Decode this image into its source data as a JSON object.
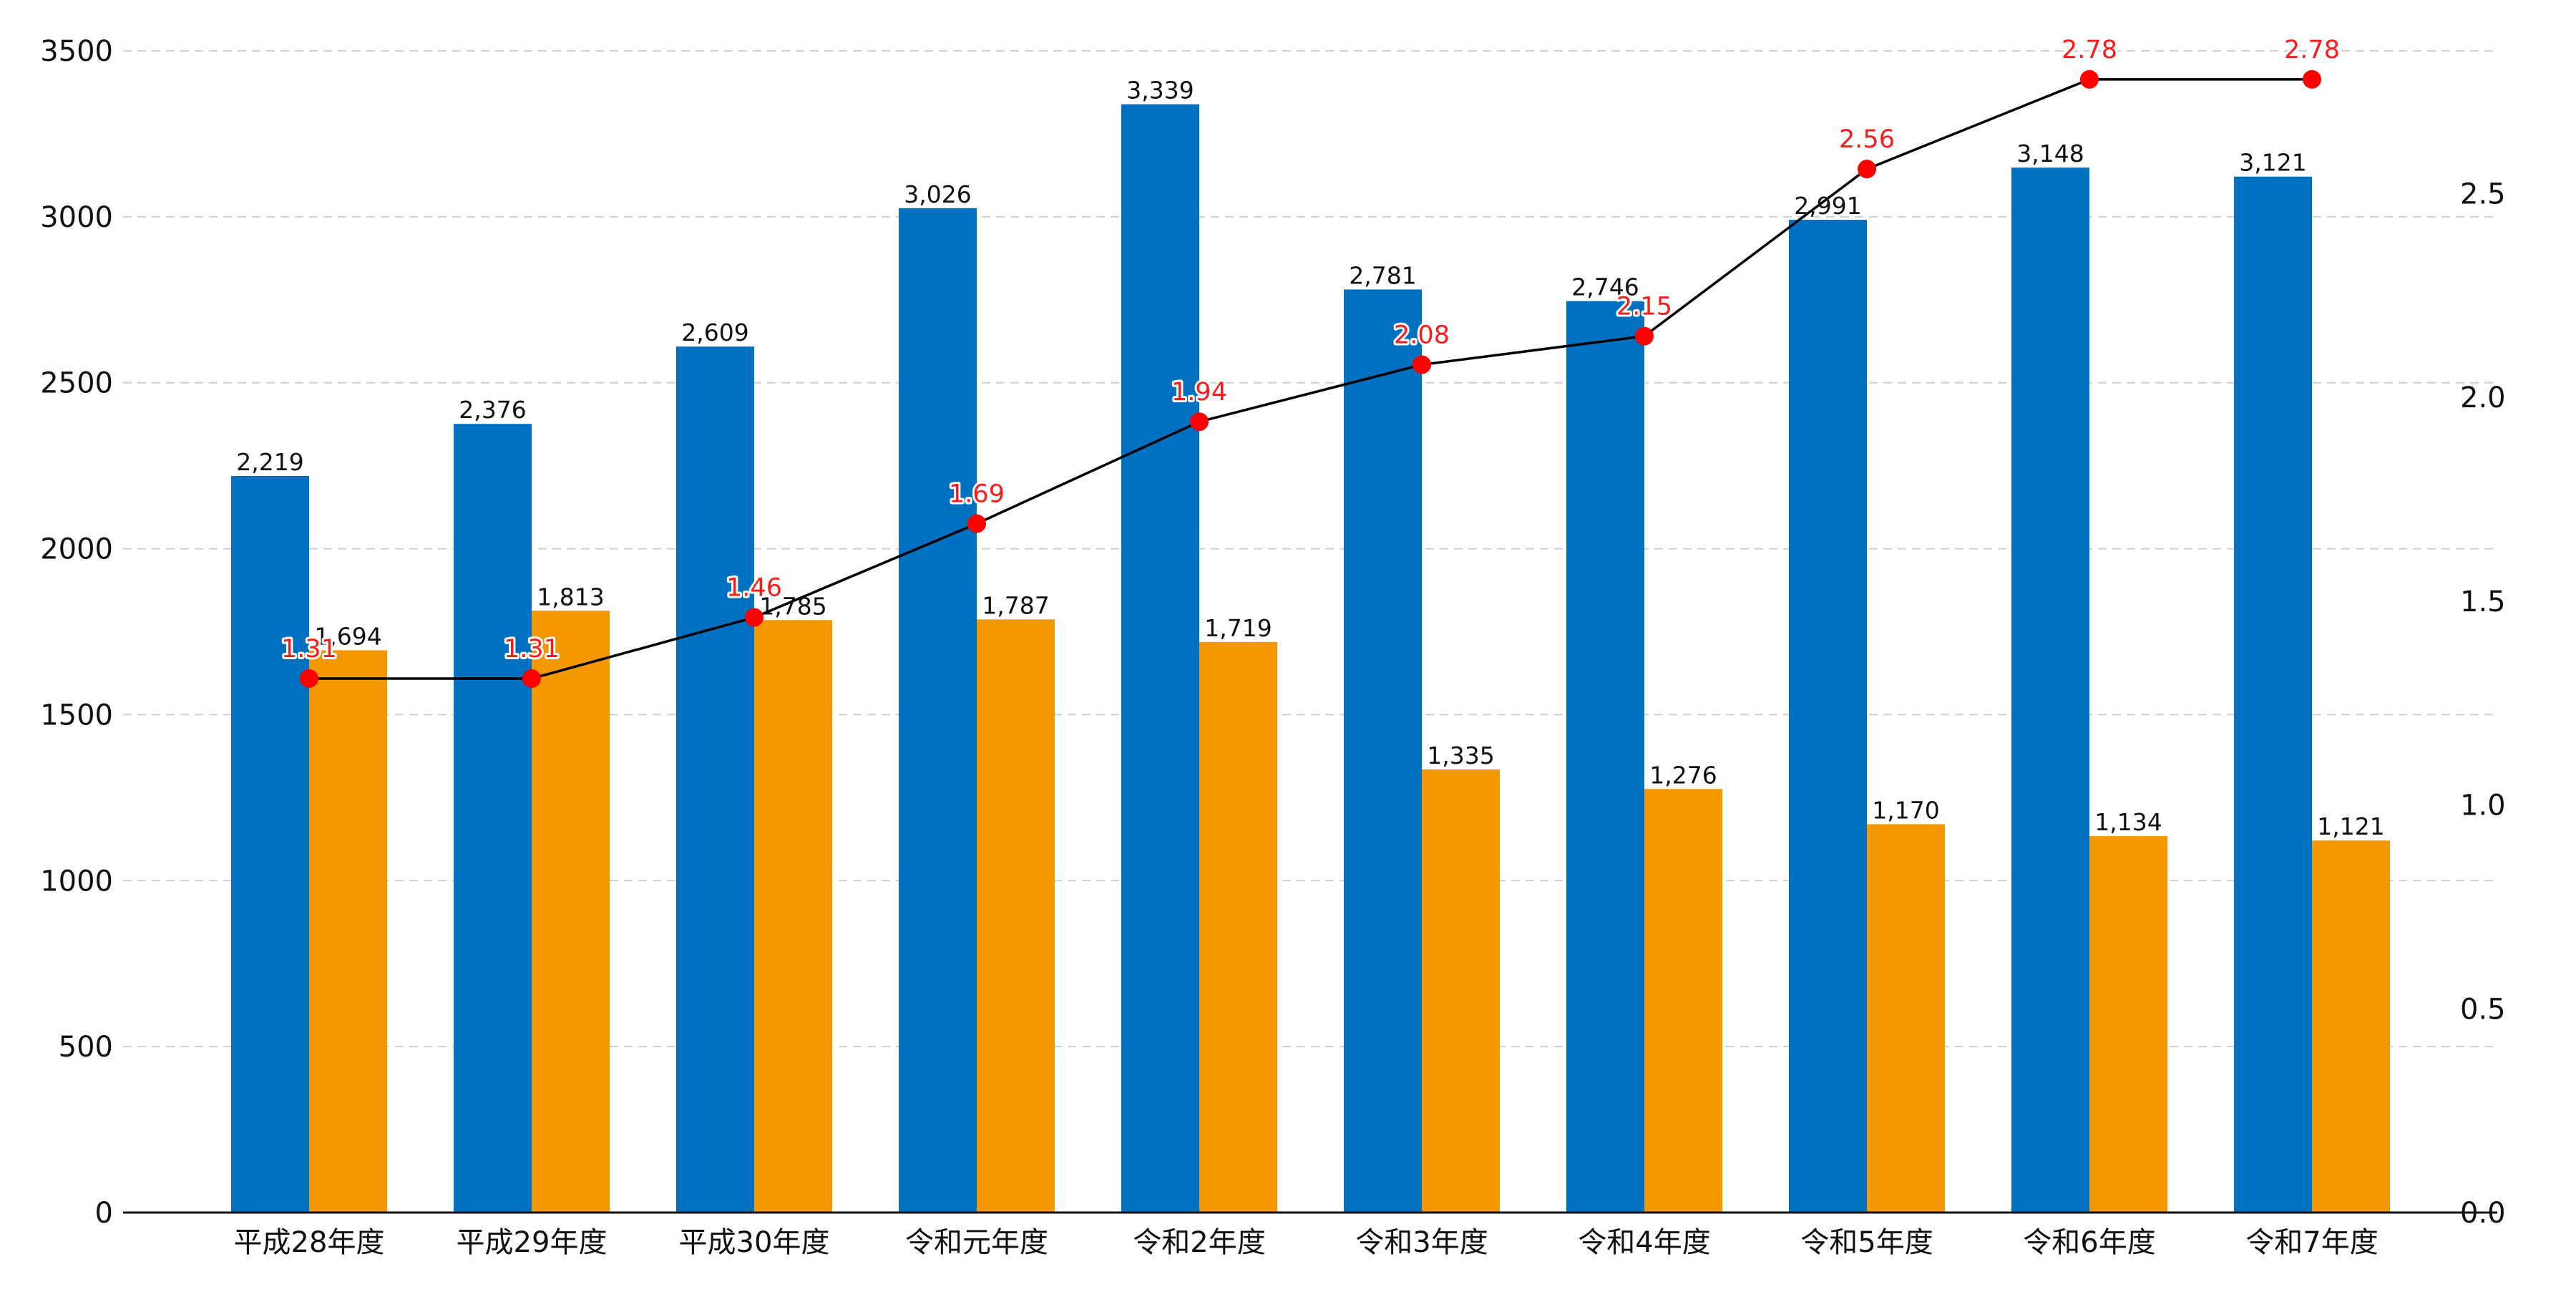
{
  "chart_data": {
    "type": "bar",
    "title": "",
    "xlabel": "",
    "ylabel": "",
    "categories": [
      "平成28年度",
      "平成29年度",
      "平成30年度",
      "令和元年度",
      "令和2年度",
      "令和3年度",
      "令和4年度",
      "令和5年度",
      "令和6年度",
      "令和7年度"
    ],
    "series": [
      {
        "type": "bar",
        "axis": "left",
        "color": "#0070c0",
        "values": [
          2219,
          2376,
          2609,
          3026,
          3339,
          2781,
          2746,
          2991,
          3148,
          3121
        ],
        "value_labels": [
          "2,219",
          "2,376",
          "2,609",
          "3,026",
          "3,339",
          "2,781",
          "2,746",
          "2,991",
          "3,148",
          "3,121"
        ]
      },
      {
        "type": "bar",
        "axis": "left",
        "color": "#f39800",
        "values": [
          1694,
          1813,
          1785,
          1787,
          1719,
          1335,
          1276,
          1170,
          1134,
          1121
        ],
        "value_labels": [
          "1,694",
          "1,813",
          "1,785",
          "1,787",
          "1,719",
          "1,335",
          "1,276",
          "1,170",
          "1,134",
          "1,121"
        ]
      },
      {
        "type": "line",
        "axis": "right",
        "line_color": "#000000",
        "marker_color": "#ff0000",
        "label_color": "#ff1a1a",
        "values": [
          1.31,
          1.31,
          1.46,
          1.69,
          1.94,
          2.08,
          2.15,
          2.56,
          2.78,
          2.78
        ],
        "value_labels": [
          "1.31",
          "1.31",
          "1.46",
          "1.69",
          "1.94",
          "2.08",
          "2.15",
          "2.56",
          "2.78",
          "2.78"
        ]
      }
    ],
    "y_left": {
      "lim": [
        0,
        3500
      ],
      "ticks": [
        0,
        500,
        1000,
        1500,
        2000,
        2500,
        3000,
        3500
      ],
      "tick_labels": [
        "0",
        "500",
        "1000",
        "1500",
        "2000",
        "2500",
        "3000",
        "3500"
      ]
    },
    "y_right": {
      "lim": [
        0,
        2.85
      ],
      "ticks": [
        0,
        0.5,
        1.0,
        1.5,
        2.0,
        2.5
      ],
      "tick_labels": [
        "0.0",
        "0.5",
        "1.0",
        "1.5",
        "2.0",
        "2.5"
      ]
    },
    "grid": "horizontal-dashed",
    "legend": "none"
  }
}
